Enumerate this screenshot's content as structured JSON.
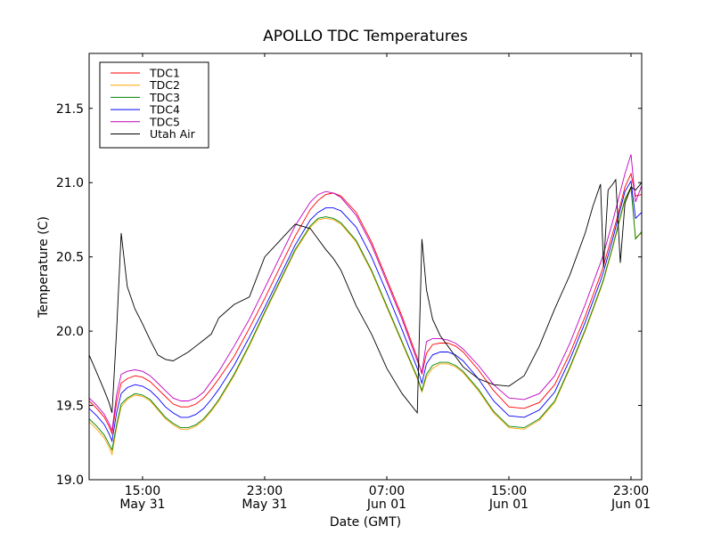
{
  "chart_data": {
    "type": "line",
    "title": "APOLLO TDC Temperatures",
    "xlabel": "Date (GMT)",
    "ylabel": "Temperature (C)",
    "x_unit": "hours since 00:00 May 31 (GMT)",
    "xlim": [
      11.5,
      47.7
    ],
    "ylim": [
      19.0,
      21.87
    ],
    "grid": false,
    "legend_position": "top-left",
    "yticks": [
      19.0,
      19.5,
      20.0,
      20.5,
      21.0,
      21.5
    ],
    "ytick_labels": [
      "19.0",
      "19.5",
      "20.0",
      "20.5",
      "21.0",
      "21.5"
    ],
    "xticks": [
      15,
      23,
      31,
      39,
      47
    ],
    "xtick_labels": [
      [
        "15:00",
        "May 31"
      ],
      [
        "23:00",
        "May 31"
      ],
      [
        "07:00",
        "Jun 01"
      ],
      [
        "15:00",
        "Jun 01"
      ],
      [
        "23:00",
        "Jun 01"
      ]
    ],
    "x": [
      11.5,
      12.0,
      12.5,
      12.8,
      13.0,
      13.3,
      13.6,
      14.0,
      14.5,
      15.0,
      15.5,
      16.0,
      16.5,
      17.0,
      17.5,
      18.0,
      18.5,
      19.0,
      19.5,
      20.0,
      21.0,
      22.0,
      23.0,
      24.0,
      25.0,
      26.0,
      26.5,
      27.0,
      27.5,
      28.0,
      29.0,
      30.0,
      31.0,
      32.0,
      33.0,
      33.3,
      33.6,
      34.0,
      34.5,
      35.0,
      35.5,
      36.0,
      37.0,
      38.0,
      39.0,
      40.0,
      41.0,
      42.0,
      43.0,
      44.0,
      44.5,
      45.0,
      45.2,
      45.5,
      45.8,
      46.0,
      46.3,
      46.6,
      47.0,
      47.3,
      47.7
    ],
    "series": [
      {
        "name": "TDC1",
        "color": "#ff0000",
        "values": [
          19.53,
          19.48,
          19.42,
          19.36,
          19.31,
          19.52,
          19.65,
          19.68,
          19.7,
          19.69,
          19.66,
          19.61,
          19.56,
          19.51,
          19.49,
          19.49,
          19.51,
          19.55,
          19.61,
          19.68,
          19.83,
          20.02,
          20.22,
          20.43,
          20.64,
          20.82,
          20.88,
          20.92,
          20.93,
          20.91,
          20.8,
          20.6,
          20.35,
          20.1,
          19.82,
          19.71,
          19.85,
          19.91,
          19.92,
          19.92,
          19.9,
          19.86,
          19.74,
          19.6,
          19.49,
          19.48,
          19.52,
          19.64,
          19.85,
          20.1,
          20.24,
          20.38,
          20.44,
          20.55,
          20.66,
          20.73,
          20.85,
          20.97,
          21.06,
          20.91,
          20.92
        ]
      },
      {
        "name": "TDC2",
        "color": "#ffa500",
        "values": [
          19.39,
          19.34,
          19.28,
          19.22,
          19.17,
          19.35,
          19.49,
          19.54,
          19.57,
          19.56,
          19.53,
          19.47,
          19.41,
          19.37,
          19.34,
          19.34,
          19.36,
          19.4,
          19.46,
          19.53,
          19.7,
          19.9,
          20.12,
          20.33,
          20.54,
          20.7,
          20.75,
          20.76,
          20.75,
          20.72,
          20.6,
          20.4,
          20.16,
          19.92,
          19.68,
          19.59,
          19.69,
          19.75,
          19.78,
          19.78,
          19.76,
          19.72,
          19.6,
          19.45,
          19.35,
          19.34,
          19.4,
          19.52,
          19.75,
          20.0,
          20.14,
          20.28,
          20.34,
          20.45,
          20.56,
          20.64,
          20.76,
          20.88,
          20.96,
          20.63,
          20.66
        ]
      },
      {
        "name": "TDC3",
        "color": "#008000",
        "values": [
          19.41,
          19.36,
          19.3,
          19.24,
          19.2,
          19.37,
          19.51,
          19.55,
          19.58,
          19.57,
          19.54,
          19.48,
          19.42,
          19.38,
          19.35,
          19.35,
          19.37,
          19.41,
          19.47,
          19.54,
          19.71,
          19.91,
          20.13,
          20.34,
          20.55,
          20.71,
          20.76,
          20.77,
          20.76,
          20.73,
          20.61,
          20.41,
          20.17,
          19.93,
          19.69,
          19.6,
          19.71,
          19.77,
          19.79,
          19.79,
          19.77,
          19.73,
          19.61,
          19.46,
          19.36,
          19.35,
          19.41,
          19.53,
          19.76,
          20.01,
          20.15,
          20.29,
          20.35,
          20.46,
          20.57,
          20.65,
          20.77,
          20.89,
          20.97,
          20.62,
          20.67
        ]
      },
      {
        "name": "TDC4",
        "color": "#0000ff",
        "values": [
          19.48,
          19.43,
          19.37,
          19.31,
          19.26,
          19.45,
          19.58,
          19.62,
          19.64,
          19.63,
          19.6,
          19.55,
          19.49,
          19.45,
          19.42,
          19.42,
          19.44,
          19.48,
          19.54,
          19.61,
          19.77,
          19.96,
          20.16,
          20.37,
          20.58,
          20.75,
          20.8,
          20.83,
          20.83,
          20.81,
          20.7,
          20.5,
          20.26,
          20.01,
          19.75,
          19.65,
          19.78,
          19.84,
          19.86,
          19.86,
          19.84,
          19.8,
          19.68,
          19.53,
          19.43,
          19.42,
          19.47,
          19.59,
          19.81,
          20.06,
          20.2,
          20.34,
          20.4,
          20.51,
          20.62,
          20.7,
          20.82,
          20.94,
          21.01,
          20.76,
          20.8
        ]
      },
      {
        "name": "TDC5",
        "color": "#bf00bf",
        "values": [
          19.55,
          19.5,
          19.44,
          19.38,
          19.33,
          19.57,
          19.71,
          19.73,
          19.74,
          19.73,
          19.7,
          19.65,
          19.6,
          19.55,
          19.53,
          19.53,
          19.55,
          19.59,
          19.66,
          19.73,
          19.9,
          20.08,
          20.29,
          20.5,
          20.71,
          20.87,
          20.92,
          20.94,
          20.93,
          20.9,
          20.78,
          20.58,
          20.33,
          20.08,
          19.8,
          19.72,
          19.93,
          19.95,
          19.95,
          19.94,
          19.92,
          19.88,
          19.77,
          19.64,
          19.55,
          19.54,
          19.58,
          19.7,
          19.92,
          20.18,
          20.32,
          20.46,
          20.52,
          20.63,
          20.74,
          20.82,
          20.94,
          21.06,
          21.19,
          20.87,
          20.98
        ]
      },
      {
        "name": "Utah Air",
        "color": "#000000",
        "values": [
          19.84,
          19.72,
          19.6,
          19.52,
          19.45,
          20.0,
          20.66,
          20.3,
          20.15,
          20.05,
          19.94,
          19.84,
          19.81,
          19.8,
          19.83,
          19.86,
          19.9,
          19.94,
          19.98,
          20.09,
          20.18,
          20.23,
          20.5,
          20.61,
          20.72,
          20.69,
          20.62,
          20.55,
          20.49,
          20.41,
          20.17,
          19.98,
          19.75,
          19.58,
          19.45,
          20.62,
          20.28,
          20.08,
          19.97,
          19.9,
          19.83,
          19.76,
          19.68,
          19.64,
          19.63,
          19.7,
          19.9,
          20.15,
          20.38,
          20.66,
          20.84,
          20.99,
          20.43,
          20.95,
          20.99,
          21.02,
          20.46,
          20.86,
          20.97,
          20.95,
          21.0
        ]
      }
    ]
  }
}
